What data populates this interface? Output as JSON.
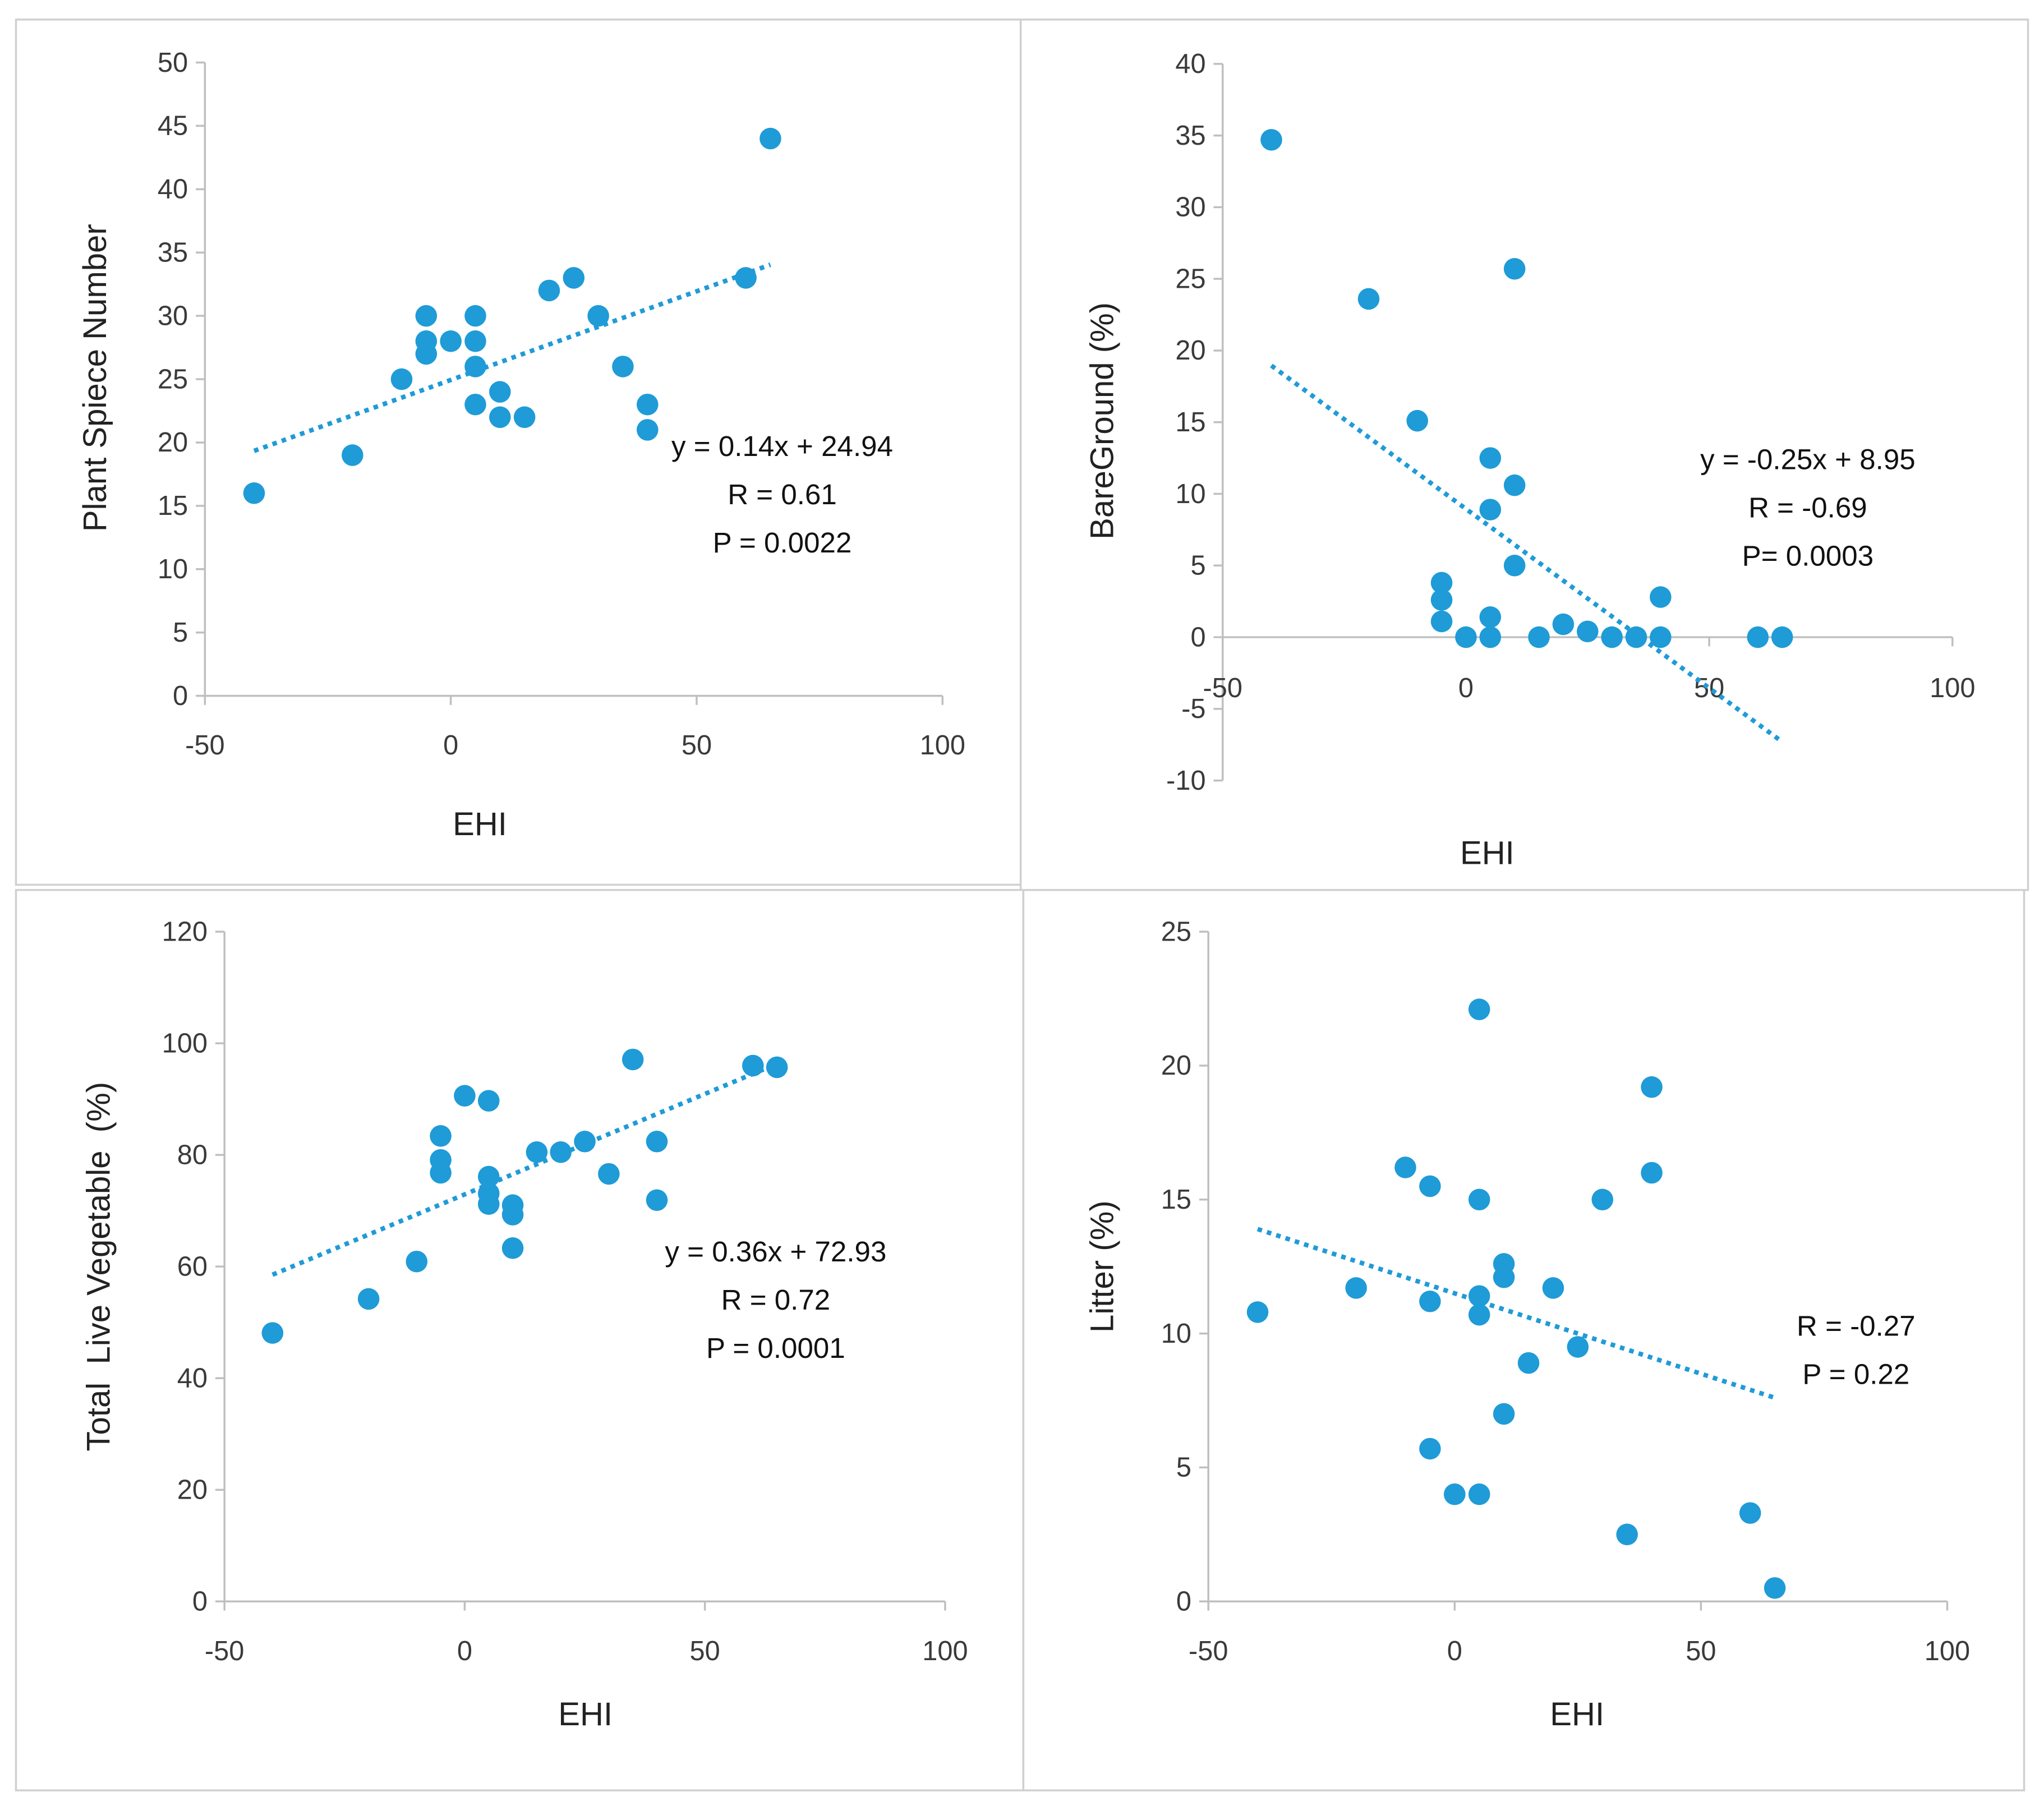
{
  "colors": {
    "point": "#1f9bd7",
    "trend": "#1f9bd7",
    "axis": "#bfbfbf",
    "frame": "#d0d0d0"
  },
  "chart_data": [
    {
      "type": "scatter",
      "xlabel": "EHI",
      "ylabel": "Plant Spiece Number",
      "xlim": [
        -50,
        100
      ],
      "xticks": [
        -50,
        0,
        50,
        100
      ],
      "ylim": [
        0,
        50
      ],
      "yticks": [
        0,
        5,
        10,
        15,
        20,
        25,
        30,
        35,
        40,
        45,
        50
      ],
      "grid": false,
      "annotations": [
        "y = 0.14x + 24.94",
        "R = 0.61",
        "P = 0.0022"
      ],
      "trendline": {
        "slope": 0.14,
        "intercept": 24.94,
        "x_range": [
          -40,
          65
        ],
        "style": "dotted"
      },
      "points": [
        [
          -40,
          16
        ],
        [
          -20,
          19
        ],
        [
          -10,
          25
        ],
        [
          -5,
          30
        ],
        [
          -5,
          28
        ],
        [
          -5,
          27
        ],
        [
          0,
          28
        ],
        [
          5,
          30
        ],
        [
          5,
          28
        ],
        [
          5,
          26
        ],
        [
          5,
          23
        ],
        [
          10,
          24
        ],
        [
          10,
          22
        ],
        [
          15,
          22
        ],
        [
          20,
          32
        ],
        [
          25,
          33
        ],
        [
          30,
          30
        ],
        [
          35,
          26
        ],
        [
          40,
          23
        ],
        [
          40,
          21
        ],
        [
          60,
          33
        ],
        [
          65,
          44
        ]
      ]
    },
    {
      "type": "scatter",
      "xlabel": "EHI",
      "ylabel": "BareGround (%)",
      "xlim": [
        -50,
        100
      ],
      "xticks": [
        -50,
        0,
        50,
        100
      ],
      "ylim": [
        -10,
        40
      ],
      "yticks": [
        -10,
        -5,
        0,
        5,
        10,
        15,
        20,
        25,
        30,
        35,
        40
      ],
      "grid": false,
      "annotations": [
        "y = -0.25x + 8.95",
        "R = -0.69",
        "P= 0.0003"
      ],
      "trendline": {
        "slope": -0.25,
        "intercept": 8.95,
        "x_range": [
          -40,
          65
        ],
        "style": "dotted"
      },
      "points": [
        [
          -40,
          34.7
        ],
        [
          -20,
          23.6
        ],
        [
          -10,
          15.1
        ],
        [
          -5,
          3.8
        ],
        [
          -5,
          2.6
        ],
        [
          -5,
          1.1
        ],
        [
          0,
          0
        ],
        [
          5,
          12.5
        ],
        [
          5,
          8.9
        ],
        [
          5,
          1.4
        ],
        [
          5,
          0
        ],
        [
          10,
          25.7
        ],
        [
          10,
          10.6
        ],
        [
          10,
          5
        ],
        [
          15,
          0
        ],
        [
          20,
          0.9
        ],
        [
          25,
          0.4
        ],
        [
          30,
          0
        ],
        [
          35,
          0
        ],
        [
          40,
          2.8
        ],
        [
          40,
          0
        ],
        [
          60,
          0
        ],
        [
          65,
          0
        ]
      ]
    },
    {
      "type": "scatter",
      "xlabel": "EHI",
      "ylabel": "Total  Live Vegetable  (%)",
      "xlim": [
        -50,
        100
      ],
      "xticks": [
        -50,
        0,
        50,
        100
      ],
      "ylim": [
        0,
        120
      ],
      "yticks": [
        0,
        20,
        40,
        60,
        80,
        100,
        120
      ],
      "grid": false,
      "annotations": [
        "y = 0.36x + 72.93",
        "R = 0.72",
        "P = 0.0001"
      ],
      "trendline": {
        "slope": 0.36,
        "intercept": 72.93,
        "x_range": [
          -40,
          65
        ],
        "style": "dotted"
      },
      "points": [
        [
          -40,
          48.1
        ],
        [
          -20,
          54.2
        ],
        [
          -10,
          60.9
        ],
        [
          -5,
          83.4
        ],
        [
          -5,
          79.1
        ],
        [
          -5,
          76.8
        ],
        [
          0,
          90.6
        ],
        [
          5,
          89.7
        ],
        [
          5,
          76.1
        ],
        [
          5,
          73.1
        ],
        [
          5,
          71.2
        ],
        [
          10,
          71
        ],
        [
          10,
          69.3
        ],
        [
          10,
          63.3
        ],
        [
          15,
          80.5
        ],
        [
          20,
          80.5
        ],
        [
          25,
          82.4
        ],
        [
          30,
          76.6
        ],
        [
          35,
          97.1
        ],
        [
          40,
          82.4
        ],
        [
          40,
          71.9
        ],
        [
          60,
          96
        ],
        [
          65,
          95.7
        ]
      ]
    },
    {
      "type": "scatter",
      "xlabel": "EHI",
      "ylabel": "Litter (%)",
      "xlim": [
        -50,
        100
      ],
      "xticks": [
        -50,
        0,
        50,
        100
      ],
      "ylim": [
        0,
        25
      ],
      "yticks": [
        0,
        5,
        10,
        15,
        20,
        25
      ],
      "grid": false,
      "annotations": [
        "R = -0.27",
        "P = 0.22"
      ],
      "trendline": {
        "slope": -0.06,
        "intercept": 11.5,
        "x_range": [
          -40,
          65
        ],
        "style": "dotted"
      },
      "points": [
        [
          -40,
          10.8
        ],
        [
          -20,
          11.7
        ],
        [
          -10,
          16.2
        ],
        [
          -5,
          15.5
        ],
        [
          -5,
          11.2
        ],
        [
          -5,
          5.7
        ],
        [
          0,
          4
        ],
        [
          5,
          22.1
        ],
        [
          5,
          15
        ],
        [
          5,
          11.4
        ],
        [
          5,
          10.7
        ],
        [
          5,
          4
        ],
        [
          10,
          12.6
        ],
        [
          10,
          12.1
        ],
        [
          10,
          7
        ],
        [
          15,
          8.9
        ],
        [
          20,
          11.7
        ],
        [
          25,
          9.5
        ],
        [
          30,
          15
        ],
        [
          35,
          2.5
        ],
        [
          40,
          19.2
        ],
        [
          40,
          16
        ],
        [
          60,
          3.3
        ],
        [
          65,
          0.5
        ]
      ]
    }
  ]
}
